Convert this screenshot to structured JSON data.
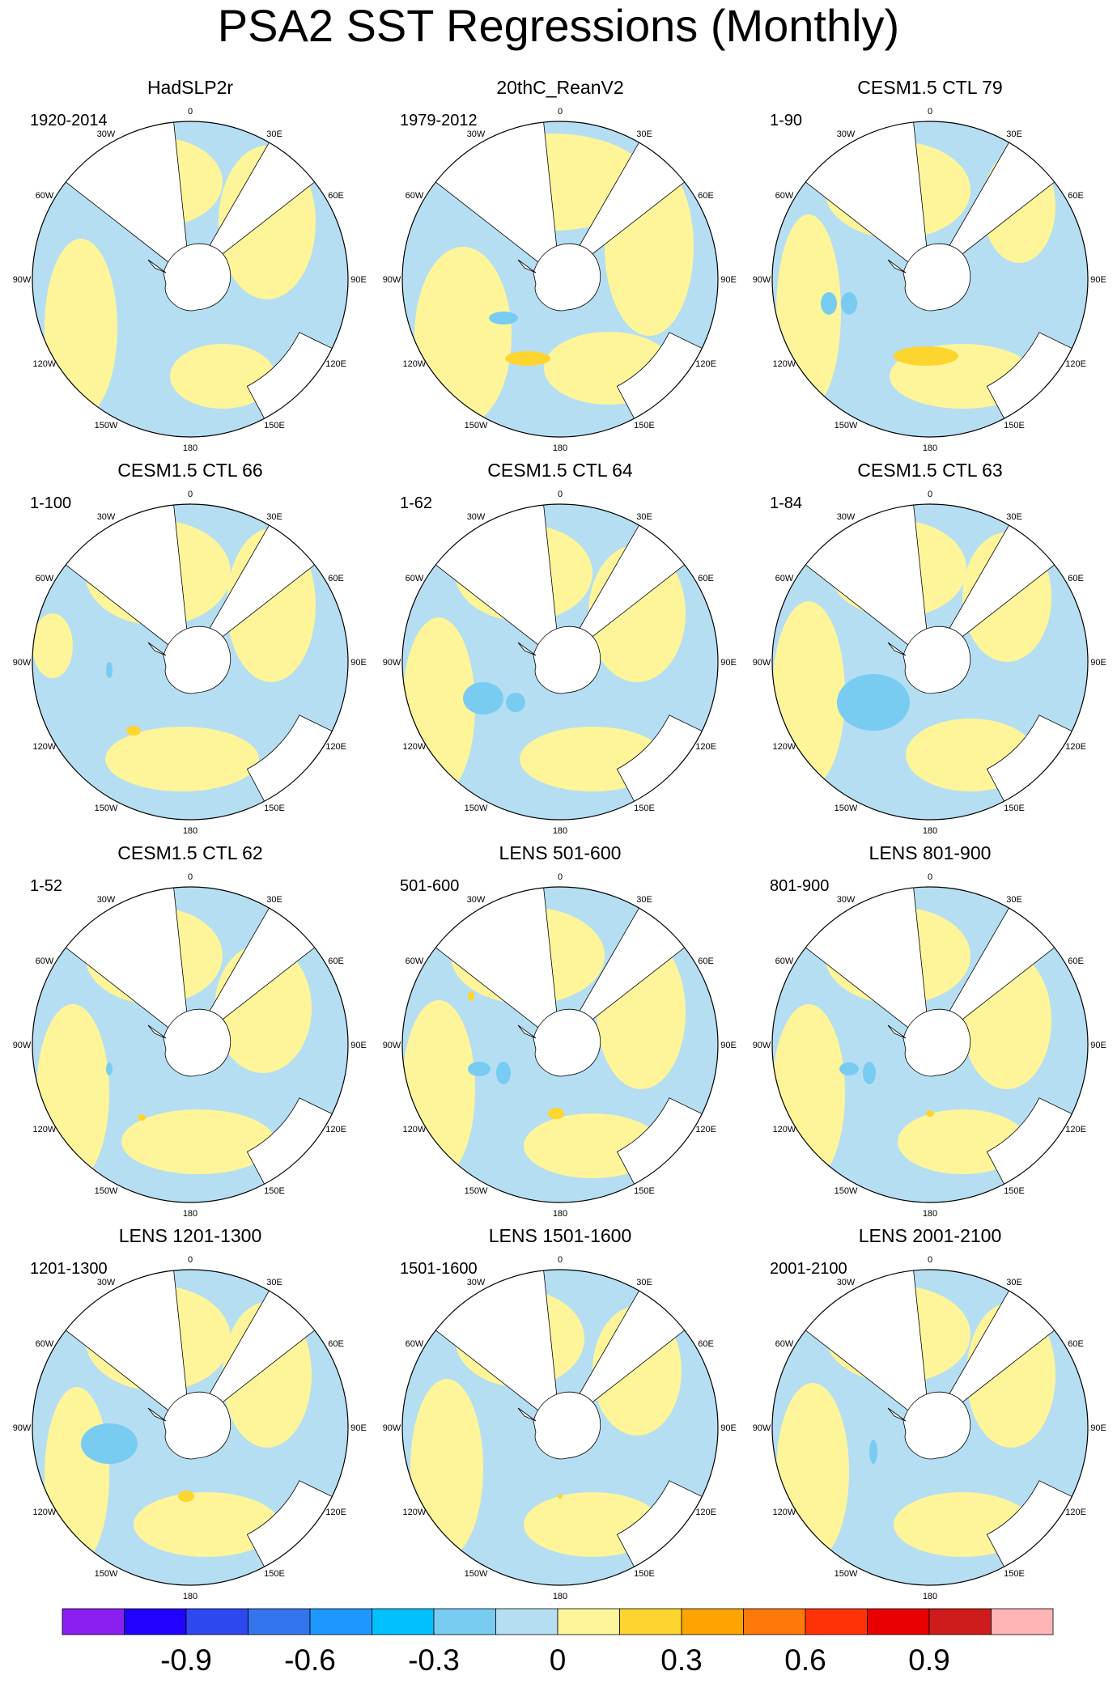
{
  "title": "PSA2 SST Regressions (Monthly)",
  "colors": {
    "scale": [
      "#8b1ef0",
      "#2003ff",
      "#2e48f0",
      "#3474ec",
      "#1e98fe",
      "#00c0fe",
      "#78ccf2",
      "#b5def2",
      "#fef59a",
      "#fdd52e",
      "#fea401",
      "#fe780a",
      "#fe3205",
      "#e80001",
      "#ce1c1c",
      "#ffb5b5"
    ],
    "land": "#ffffff",
    "outline": "#000000"
  },
  "colorbar": {
    "levels": [
      -1.05,
      -0.9,
      -0.75,
      -0.6,
      -0.45,
      -0.3,
      -0.15,
      0,
      0.15,
      0.3,
      0.45,
      0.6,
      0.75,
      0.9,
      1.05
    ],
    "tick_labels": [
      "-0.9",
      "-0.6",
      "-0.3",
      "0",
      "0.3",
      "0.6",
      "0.9"
    ]
  },
  "longitude_labels": [
    "0",
    "30E",
    "60E",
    "90E",
    "120E",
    "150E",
    "180",
    "150W",
    "120W",
    "90W",
    "60W",
    "30W"
  ],
  "panels": [
    {
      "title": "HadSLP2r",
      "period": "1920-2014"
    },
    {
      "title": "20thC_ReanV2",
      "period": "1979-2012"
    },
    {
      "title": "CESM1.5 CTL 79",
      "period": "1-90"
    },
    {
      "title": "CESM1.5 CTL 66",
      "period": "1-100"
    },
    {
      "title": "CESM1.5 CTL 64",
      "period": "1-62"
    },
    {
      "title": "CESM1.5 CTL 63",
      "period": "1-84"
    },
    {
      "title": "CESM1.5 CTL 62",
      "period": "1-52"
    },
    {
      "title": "LENS 501-600",
      "period": "501-600"
    },
    {
      "title": "LENS 801-900",
      "period": "801-900"
    },
    {
      "title": "LENS 1201-1300",
      "period": "1201-1300"
    },
    {
      "title": "LENS 1501-1600",
      "period": "1501-1600"
    },
    {
      "title": "LENS 2001-2100",
      "period": "2001-2100"
    }
  ]
}
